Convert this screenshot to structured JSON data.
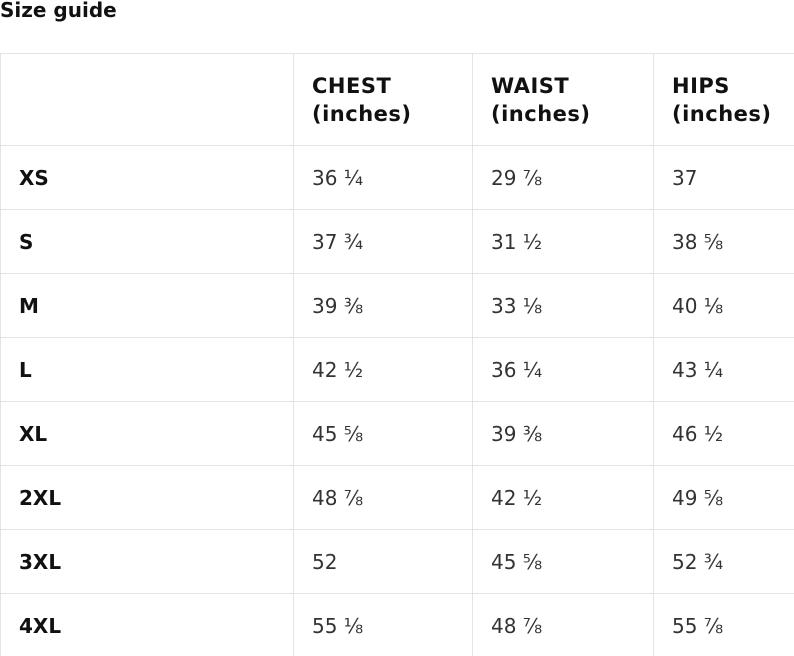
{
  "title": "Size guide",
  "table": {
    "header": [
      [
        "CHEST",
        "(inches)"
      ],
      [
        "WAIST",
        "(inches)"
      ],
      [
        "HIPS",
        "(inches)"
      ]
    ],
    "rows": [
      [
        "XS",
        "36 ¼",
        "29 ⅞",
        "37"
      ],
      [
        "S",
        "37 ¾",
        "31 ½",
        "38 ⅝"
      ],
      [
        "M",
        "39 ⅜",
        "33 ⅛",
        "40 ⅛"
      ],
      [
        "L",
        "42 ½",
        "36 ¼",
        "43 ¼"
      ],
      [
        "XL",
        "45 ⅝",
        "39 ⅜",
        "46 ½"
      ],
      [
        "2XL",
        "48 ⅞",
        "42 ½",
        "49 ⅝"
      ],
      [
        "3XL",
        "52",
        "45 ⅝",
        "52 ¾"
      ],
      [
        "4XL",
        "55 ⅛",
        "48 ⅞",
        "55 ⅞"
      ]
    ]
  }
}
